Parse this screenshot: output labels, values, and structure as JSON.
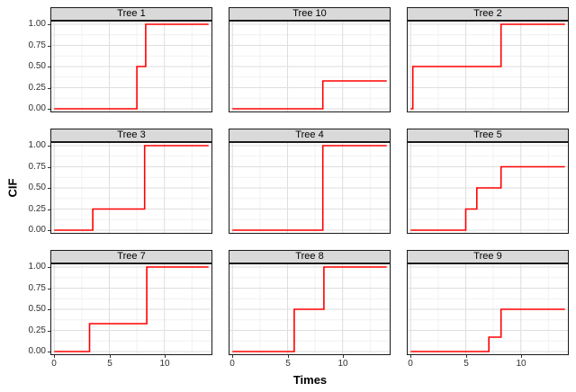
{
  "chart_data": {
    "type": "step",
    "title": "",
    "xlabel": "Times",
    "ylabel": "CIF",
    "legend": "none",
    "xlim": [
      0,
      14
    ],
    "ylim": [
      0,
      1
    ],
    "x_ticks": [
      {
        "value": 0,
        "label": "0"
      },
      {
        "value": 5,
        "label": "5"
      },
      {
        "value": 10,
        "label": "10"
      }
    ],
    "y_ticks": [
      {
        "value": 1.0,
        "label": "1.00"
      },
      {
        "value": 0.75,
        "label": "0.75"
      },
      {
        "value": 0.5,
        "label": "0.50"
      },
      {
        "value": 0.25,
        "label": "0.25"
      },
      {
        "value": 0.0,
        "label": "0.00"
      }
    ],
    "grid": {
      "major_x": [
        0,
        5,
        10
      ],
      "minor_x": [
        2.5,
        7.5,
        12.5
      ],
      "major_y": [
        0,
        0.25,
        0.5,
        0.75,
        1
      ],
      "minor_y": [
        0.125,
        0.375,
        0.625,
        0.875
      ]
    },
    "colors": {
      "line": "#FF0000",
      "strip_bg": "#D9D9D9",
      "panel_border": "#1A1A1A",
      "grid_major": "#DEDEDE",
      "grid_minor": "#F1F1F1",
      "tick_text": "#303030"
    },
    "facets": [
      {
        "label": "Tree 1",
        "points": [
          [
            0,
            0
          ],
          [
            7.5,
            0
          ],
          [
            7.5,
            0.5
          ],
          [
            8.3,
            0.5
          ],
          [
            8.3,
            1
          ],
          [
            14,
            1
          ]
        ]
      },
      {
        "label": "Tree 10",
        "points": [
          [
            0,
            0
          ],
          [
            8.2,
            0
          ],
          [
            8.2,
            0.33
          ],
          [
            14,
            0.33
          ]
        ]
      },
      {
        "label": "Tree 2",
        "points": [
          [
            0,
            0
          ],
          [
            0.2,
            0
          ],
          [
            0.2,
            0.5
          ],
          [
            8.2,
            0.5
          ],
          [
            8.2,
            1
          ],
          [
            14,
            1
          ]
        ]
      },
      {
        "label": "Tree 3",
        "points": [
          [
            0,
            0
          ],
          [
            3.5,
            0
          ],
          [
            3.5,
            0.25
          ],
          [
            8.2,
            0.25
          ],
          [
            8.2,
            1
          ],
          [
            14,
            1
          ]
        ]
      },
      {
        "label": "Tree 4",
        "points": [
          [
            0,
            0
          ],
          [
            8.2,
            0
          ],
          [
            8.2,
            1
          ],
          [
            14,
            1
          ]
        ]
      },
      {
        "label": "Tree 5",
        "points": [
          [
            0,
            0
          ],
          [
            5,
            0
          ],
          [
            5,
            0.25
          ],
          [
            6,
            0.25
          ],
          [
            6,
            0.5
          ],
          [
            8.2,
            0.5
          ],
          [
            8.2,
            0.75
          ],
          [
            14,
            0.75
          ]
        ]
      },
      {
        "label": "Tree 7",
        "points": [
          [
            0,
            0
          ],
          [
            3.2,
            0
          ],
          [
            3.2,
            0.33
          ],
          [
            8.4,
            0.33
          ],
          [
            8.4,
            1
          ],
          [
            14,
            1
          ]
        ]
      },
      {
        "label": "Tree 8",
        "points": [
          [
            0,
            0
          ],
          [
            5.6,
            0
          ],
          [
            5.6,
            0.5
          ],
          [
            8.3,
            0.5
          ],
          [
            8.3,
            1
          ],
          [
            14,
            1
          ]
        ]
      },
      {
        "label": "Tree 9",
        "points": [
          [
            0,
            0
          ],
          [
            7.1,
            0
          ],
          [
            7.1,
            0.17
          ],
          [
            8.2,
            0.17
          ],
          [
            8.2,
            0.5
          ],
          [
            14,
            0.5
          ]
        ]
      }
    ]
  }
}
